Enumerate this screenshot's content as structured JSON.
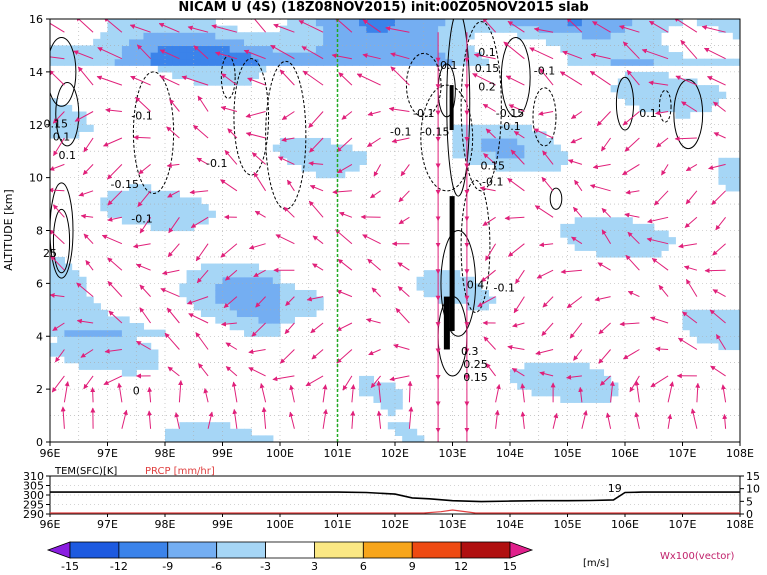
{
  "title": "NICAM U (4S) (18Z08NOV2015) init:00Z05NOV2015 slab",
  "chart_data": [
    {
      "type": "heatmap",
      "panel": "main",
      "title": "NICAM U (4S) (18Z08NOV2015) init:00Z05NOV2015 slab",
      "xlabel": "",
      "ylabel": "ALTITUDE [km]",
      "x_ticks": [
        "96E",
        "97E",
        "98E",
        "99E",
        "100E",
        "101E",
        "102E",
        "103E",
        "104E",
        "105E",
        "106E",
        "107E",
        "108E"
      ],
      "y_ticks": [
        "0",
        "2",
        "4",
        "6",
        "8",
        "10",
        "12",
        "14",
        "16"
      ],
      "xlim": [
        96,
        108
      ],
      "ylim": [
        0,
        16
      ],
      "grid": true,
      "shading_variable": "U [m/s]",
      "vector_label": "Wx100(vector)",
      "marker_line_lon": 101,
      "contour_labels": [
        "0.1",
        "0.15",
        "-0.1",
        "-0.15",
        "0.2",
        "0.25",
        "0.3",
        "-0.1",
        "0.1",
        "-0.15",
        "0.15",
        "0.1",
        "0.25",
        "0.4",
        "-0.1",
        "0.25",
        "0.15",
        "0.2",
        "0.1"
      ],
      "contour_labels_positioned": [
        {
          "text": "0.1",
          "lon": 103.6,
          "alt": 14.6
        },
        {
          "text": "0.15",
          "lon": 103.6,
          "alt": 14.0
        },
        {
          "text": "-0.1",
          "lon": 102.9,
          "alt": 14.1
        },
        {
          "text": "-0.1",
          "lon": 104.6,
          "alt": 13.9
        },
        {
          "text": "0.2",
          "lon": 103.6,
          "alt": 13.3
        },
        {
          "text": "-0.1",
          "lon": 102.5,
          "alt": 12.3
        },
        {
          "text": "-0.15",
          "lon": 104.0,
          "alt": 12.3
        },
        {
          "text": "-0.1",
          "lon": 104.0,
          "alt": 11.8
        },
        {
          "text": "-0.1",
          "lon": 102.1,
          "alt": 11.6
        },
        {
          "text": "-0.15",
          "lon": 102.7,
          "alt": 11.6
        },
        {
          "text": "0.1",
          "lon": 106.4,
          "alt": 12.3
        },
        {
          "text": "-0.1",
          "lon": 97.6,
          "alt": 12.2
        },
        {
          "text": "0.15",
          "lon": 96.1,
          "alt": 11.9
        },
        {
          "text": "0.1",
          "lon": 96.2,
          "alt": 11.4
        },
        {
          "text": "0.1",
          "lon": 96.3,
          "alt": 10.7
        },
        {
          "text": "-0.1",
          "lon": 98.9,
          "alt": 10.4
        },
        {
          "text": "0.15",
          "lon": 103.7,
          "alt": 10.3
        },
        {
          "text": "-0.1",
          "lon": 103.7,
          "alt": 9.7
        },
        {
          "text": "-0.15",
          "lon": 97.3,
          "alt": 9.6
        },
        {
          "text": "-0.1",
          "lon": 97.6,
          "alt": 8.3
        },
        {
          "text": "25",
          "lon": 96.0,
          "alt": 7.0
        },
        {
          "text": "-0.1",
          "lon": 103.9,
          "alt": 5.7
        },
        {
          "text": "0.4",
          "lon": 103.4,
          "alt": 5.8
        },
        {
          "text": "0.3",
          "lon": 103.3,
          "alt": 3.3
        },
        {
          "text": "0.25",
          "lon": 103.4,
          "alt": 2.8
        },
        {
          "text": "0.15",
          "lon": 103.4,
          "alt": 2.3
        },
        {
          "text": "0",
          "lon": 97.5,
          "alt": 1.8
        }
      ]
    },
    {
      "type": "line",
      "panel": "surface",
      "left_label": "TEM(SFC)[K]",
      "right_label": "PRCP [mm/hr]",
      "left_ticks": [
        "310",
        "305",
        "300",
        "295",
        "290"
      ],
      "right_ticks": [
        "15",
        "10",
        "5",
        "0"
      ],
      "left_ylim": [
        290,
        310
      ],
      "right_ylim": [
        0,
        15
      ],
      "x_ticks": [
        "96E",
        "97E",
        "98E",
        "99E",
        "100E",
        "101E",
        "102E",
        "103E",
        "104E",
        "105E",
        "106E",
        "107E",
        "108E"
      ],
      "annotation": "19",
      "series": [
        {
          "name": "TEM(SFC)[K]",
          "color": "#000000",
          "x": [
            96,
            96.5,
            97,
            98,
            99,
            100,
            101,
            101.5,
            102,
            102.3,
            102.6,
            103,
            103.5,
            104,
            104.5,
            105,
            105.4,
            105.8,
            106,
            106.3,
            107,
            108
          ],
          "values": [
            301.5,
            301.5,
            301.5,
            301.5,
            301.5,
            301.5,
            301.5,
            301.3,
            300.5,
            298.5,
            298,
            297,
            296.5,
            296.8,
            297,
            297,
            297.1,
            297.4,
            301.3,
            301.5,
            301.5,
            301.5
          ]
        },
        {
          "name": "PRCP [mm/hr]",
          "color": "#e04040",
          "x": [
            96,
            101,
            102.5,
            102.8,
            103.0,
            103.2,
            103.4,
            104,
            108
          ],
          "values": [
            0,
            0,
            0,
            0.5,
            1.2,
            0.6,
            0,
            0,
            0
          ]
        }
      ]
    },
    {
      "type": "colorbar",
      "panel": "colorbar",
      "labels": [
        "-15",
        "-12",
        "-9",
        "-6",
        "-3",
        "3",
        "6",
        "9",
        "12",
        "15"
      ],
      "unit": "[m/s]",
      "colors": [
        "#8a1de0",
        "#1d5ae0",
        "#3b83ea",
        "#74aef2",
        "#a6d6f6",
        "#ffffff",
        "#fbe884",
        "#f7a51b",
        "#ee4a12",
        "#b01010",
        "#e0208c"
      ]
    }
  ]
}
